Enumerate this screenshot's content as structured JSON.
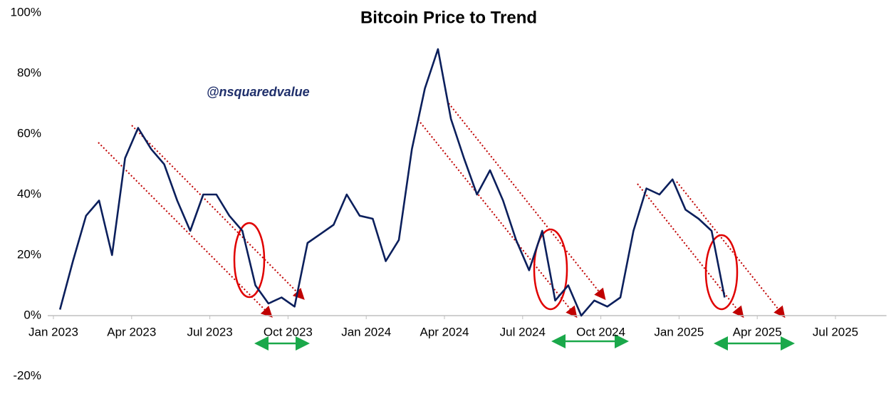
{
  "chart_data": {
    "type": "line",
    "title": "Bitcoin Price to Trend",
    "annotation": "@nsquaredvalue",
    "x": [
      "2023-01",
      "2023-01",
      "2023-02",
      "2023-02",
      "2023-03",
      "2023-03",
      "2023-04",
      "2023-04",
      "2023-05",
      "2023-05",
      "2023-06",
      "2023-06",
      "2023-07",
      "2023-07",
      "2023-08",
      "2023-08",
      "2023-09",
      "2023-09",
      "2023-10",
      "2023-10",
      "2023-11",
      "2023-11",
      "2023-12",
      "2023-12",
      "2024-01",
      "2024-01",
      "2024-02",
      "2024-02",
      "2024-03",
      "2024-03",
      "2024-04",
      "2024-04",
      "2024-05",
      "2024-05",
      "2024-06",
      "2024-06",
      "2024-07",
      "2024-07",
      "2024-08",
      "2024-08",
      "2024-09",
      "2024-09",
      "2024-10",
      "2024-10",
      "2024-11",
      "2024-11",
      "2024-12",
      "2024-12",
      "2025-01",
      "2025-01",
      "2025-02",
      "2025-02"
    ],
    "series": [
      {
        "name": "Bitcoin Price to Trend",
        "color": "#0b1f5c",
        "values": [
          2,
          18,
          33,
          38,
          20,
          52,
          62,
          55,
          50,
          38,
          28,
          40,
          40,
          33,
          28,
          10,
          4,
          6,
          3,
          24,
          27,
          30,
          40,
          33,
          32,
          18,
          25,
          55,
          75,
          88,
          65,
          52,
          40,
          48,
          38,
          25,
          15,
          28,
          5,
          10,
          0,
          5,
          3,
          6,
          28,
          42,
          40,
          45,
          35,
          32,
          28,
          6
        ]
      }
    ],
    "xlim": [
      "2023-01",
      "2025-08"
    ],
    "xticks": [
      {
        "value": "2023-01",
        "label": "Jan 2023"
      },
      {
        "value": "2023-04",
        "label": "Apr 2023"
      },
      {
        "value": "2023-07",
        "label": "Jul 2023"
      },
      {
        "value": "2023-10",
        "label": "Oct 2023"
      },
      {
        "value": "2024-01",
        "label": "Jan 2024"
      },
      {
        "value": "2024-04",
        "label": "Apr 2024"
      },
      {
        "value": "2024-07",
        "label": "Jul 2024"
      },
      {
        "value": "2024-10",
        "label": "Oct 2024"
      },
      {
        "value": "2025-01",
        "label": "Jan 2025"
      },
      {
        "value": "2025-04",
        "label": "Apr 2025"
      },
      {
        "value": "2025-07",
        "label": "Jul 2025"
      }
    ],
    "ylim": [
      -20,
      100
    ],
    "yticks": [
      {
        "value": -20,
        "label": "-20%"
      },
      {
        "value": 0,
        "label": "0%"
      },
      {
        "value": 20,
        "label": "20%"
      },
      {
        "value": 40,
        "label": "40%"
      },
      {
        "value": 60,
        "label": "60%"
      },
      {
        "value": 80,
        "label": "80%"
      },
      {
        "value": 100,
        "label": "100%"
      }
    ],
    "grid": false
  }
}
